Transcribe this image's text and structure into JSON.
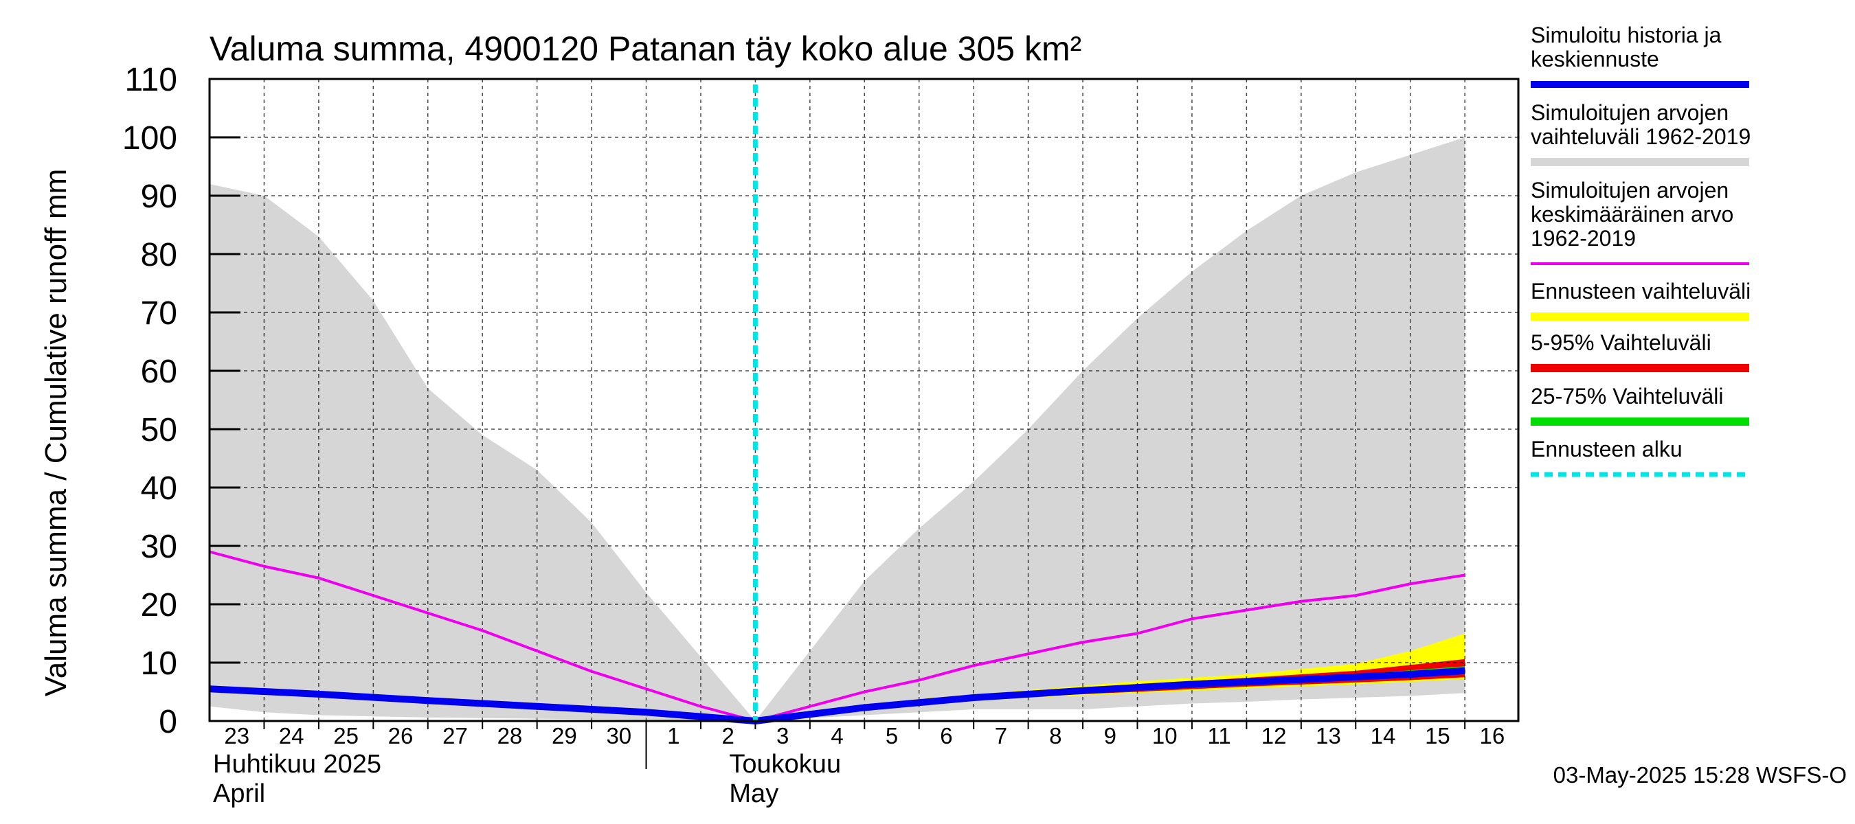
{
  "chart_data": {
    "type": "area",
    "title": "Valuma summa, 4900120 Patanan täy koko alue 305 km²",
    "ylabel": "Valuma summa / Cumulative runoff     mm",
    "ylim": [
      0,
      110
    ],
    "yticks": [
      0,
      10,
      20,
      30,
      40,
      50,
      60,
      70,
      80,
      90,
      100,
      110
    ],
    "x_range": [
      "2025-04-23",
      "2025-05-16"
    ],
    "day_labels": [
      "23",
      "24",
      "25",
      "26",
      "27",
      "28",
      "29",
      "30",
      "1",
      "2",
      "3",
      "4",
      "5",
      "6",
      "7",
      "8",
      "9",
      "10",
      "11",
      "12",
      "13",
      "14",
      "15",
      "16"
    ],
    "month_labels": [
      {
        "fi": "Huhtikuu  2025",
        "en": "April"
      },
      {
        "fi": "Toukokuu",
        "en": "May"
      }
    ],
    "forecast_start": "2025-05-03",
    "grid": true,
    "legend_position": "right",
    "footer": "03-May-2025 15:28 WSFS-O",
    "series": [
      {
        "name": "Simuloitu historia ja keskiennuste",
        "kind": "line",
        "color": "#0000ee",
        "x": [
          "2025-04-23",
          "2025-04-25",
          "2025-04-27",
          "2025-04-29",
          "2025-05-01",
          "2025-05-03",
          "2025-05-05",
          "2025-05-07",
          "2025-05-09",
          "2025-05-11",
          "2025-05-13",
          "2025-05-15",
          "2025-05-16"
        ],
        "y": [
          5.5,
          4.6,
          3.5,
          2.5,
          1.5,
          0,
          2.3,
          4.0,
          5.2,
          6.3,
          7.1,
          8.0,
          8.6
        ]
      },
      {
        "name": "Simuloitujen arvojen vaihteluväli 1962-2019",
        "kind": "band",
        "color": "#d6d6d6",
        "x": [
          "2025-04-23",
          "2025-04-24",
          "2025-04-25",
          "2025-04-26",
          "2025-04-27",
          "2025-04-28",
          "2025-04-29",
          "2025-04-30",
          "2025-05-01",
          "2025-05-02",
          "2025-05-03",
          "2025-05-04",
          "2025-05-05",
          "2025-05-06",
          "2025-05-07",
          "2025-05-08",
          "2025-05-09",
          "2025-05-10",
          "2025-05-11",
          "2025-05-12",
          "2025-05-13",
          "2025-05-14",
          "2025-05-15",
          "2025-05-16"
        ],
        "low": [
          2.5,
          1.5,
          1.0,
          0.8,
          0.6,
          0.5,
          0.4,
          0.3,
          0.2,
          0.1,
          0,
          0.5,
          1.0,
          1.5,
          2.0,
          2.0,
          2.0,
          2.5,
          3.0,
          3.3,
          3.7,
          4.0,
          4.3,
          4.8
        ],
        "high": [
          92,
          90,
          83,
          72,
          57,
          49,
          43,
          34,
          22,
          11,
          0,
          12,
          24,
          33,
          41,
          50,
          60,
          69,
          77,
          84,
          90,
          94,
          97,
          100
        ]
      },
      {
        "name": "Simuloitujen arvojen keskimääräinen arvo 1962-2019",
        "kind": "line",
        "color": "#ee00ee",
        "x": [
          "2025-04-23",
          "2025-04-24",
          "2025-04-25",
          "2025-04-26",
          "2025-04-27",
          "2025-04-28",
          "2025-04-29",
          "2025-04-30",
          "2025-05-01",
          "2025-05-02",
          "2025-05-03",
          "2025-05-04",
          "2025-05-05",
          "2025-05-06",
          "2025-05-07",
          "2025-05-08",
          "2025-05-09",
          "2025-05-10",
          "2025-05-11",
          "2025-05-12",
          "2025-05-13",
          "2025-05-14",
          "2025-05-15",
          "2025-05-16"
        ],
        "y": [
          29,
          26.5,
          24.5,
          21.5,
          18.5,
          15.5,
          12,
          8.5,
          5.5,
          2.5,
          0,
          2.5,
          5,
          7,
          9.5,
          11.5,
          13.5,
          15,
          17.5,
          19,
          20.5,
          21.5,
          23.5,
          25
        ]
      },
      {
        "name": "Ennusteen vaihteluväli",
        "kind": "band",
        "color": "#ffff00",
        "x": [
          "2025-05-03",
          "2025-05-06",
          "2025-05-08",
          "2025-05-10",
          "2025-05-12",
          "2025-05-14",
          "2025-05-15",
          "2025-05-16"
        ],
        "low": [
          0,
          2.8,
          4.0,
          4.8,
          5.6,
          6.3,
          6.7,
          7.2
        ],
        "high": [
          0,
          3.8,
          5.3,
          6.8,
          8.0,
          9.8,
          12.0,
          15.0
        ]
      },
      {
        "name": "5-95% Vaihteluväli",
        "kind": "band",
        "color": "#ee0000",
        "x": [
          "2025-05-03",
          "2025-05-06",
          "2025-05-08",
          "2025-05-10",
          "2025-05-12",
          "2025-05-14",
          "2025-05-15",
          "2025-05-16"
        ],
        "low": [
          0,
          3.0,
          4.2,
          5.0,
          5.9,
          6.6,
          7.0,
          7.5
        ],
        "high": [
          0,
          3.6,
          5.0,
          6.3,
          7.4,
          8.6,
          9.6,
          10.6
        ]
      },
      {
        "name": "25-75% Vaihteluväli",
        "kind": "band",
        "color": "#00dd00",
        "x": [
          "2025-05-03",
          "2025-05-06",
          "2025-05-08",
          "2025-05-10",
          "2025-05-12",
          "2025-05-14",
          "2025-05-15",
          "2025-05-16"
        ],
        "low": [
          0,
          3.2,
          4.4,
          5.4,
          6.3,
          7.1,
          7.6,
          8.0
        ],
        "high": [
          0,
          3.5,
          4.8,
          6.0,
          7.0,
          8.0,
          8.7,
          9.4
        ]
      },
      {
        "name": "Ennusteen alku",
        "kind": "vline",
        "color": "#00e5e5",
        "x": "2025-05-03"
      }
    ]
  }
}
